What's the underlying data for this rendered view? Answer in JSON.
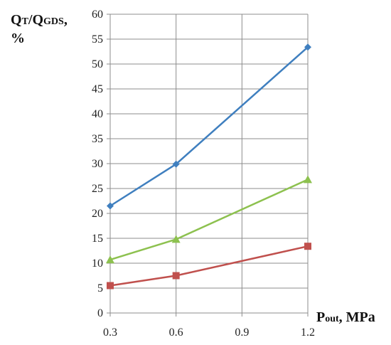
{
  "chart_data": {
    "type": "line",
    "ylabel": {
      "main": "Q",
      "sub1": "T",
      "mid": "/Q",
      "sub2": "GDS",
      "suffix": ",",
      "unit": "%"
    },
    "xlabel": {
      "main": "P",
      "sub": "out",
      "suffix": ", MPa"
    },
    "x": [
      0.3,
      0.6,
      1.2
    ],
    "xticks": [
      "0.3",
      "0.6",
      "0.9",
      "1.2"
    ],
    "xtick_values": [
      0.3,
      0.6,
      0.9,
      1.2
    ],
    "xlim": [
      0.3,
      1.2
    ],
    "ylim": [
      0,
      60
    ],
    "yticks": [
      0,
      5,
      10,
      15,
      20,
      25,
      30,
      35,
      40,
      45,
      50,
      55,
      60
    ],
    "grid": true,
    "legend": "none",
    "series": [
      {
        "values": [
          21.5,
          29.9,
          53.4
        ],
        "color": "#3F7FBF",
        "marker": "diamond"
      },
      {
        "values": [
          10.7,
          14.8,
          26.8
        ],
        "color": "#8DC14F",
        "marker": "triangle"
      },
      {
        "values": [
          5.5,
          7.5,
          13.4
        ],
        "color": "#C0504D",
        "marker": "square"
      }
    ]
  }
}
